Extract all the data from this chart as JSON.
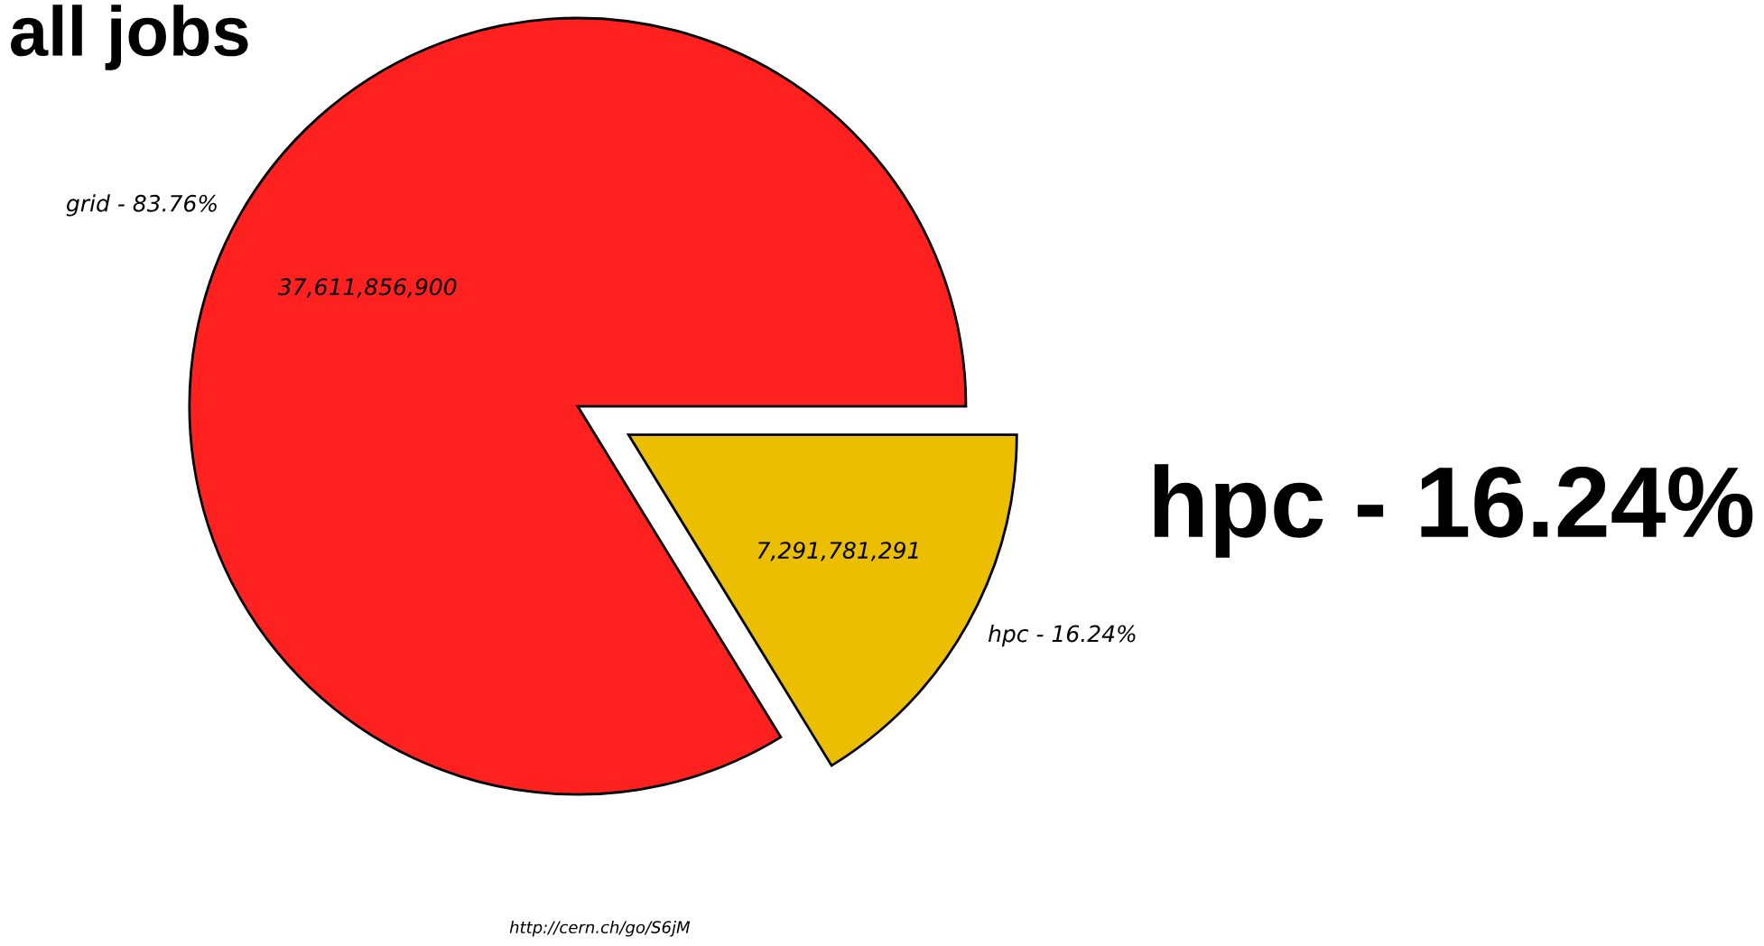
{
  "chart_data": {
    "type": "pie",
    "title": "all jobs",
    "categories": [
      "grid - 83.76%",
      "hpc - 16.24%"
    ],
    "values": [
      37611856900,
      7291781291
    ],
    "value_labels": [
      "37,611,856,900",
      "7,291,781,291"
    ],
    "colors": [
      "#ff2020",
      "#ebbf00"
    ],
    "annotations": [
      "hpc - 16.24%",
      "http://cern.ch/go/S6jM"
    ],
    "legend": false
  }
}
